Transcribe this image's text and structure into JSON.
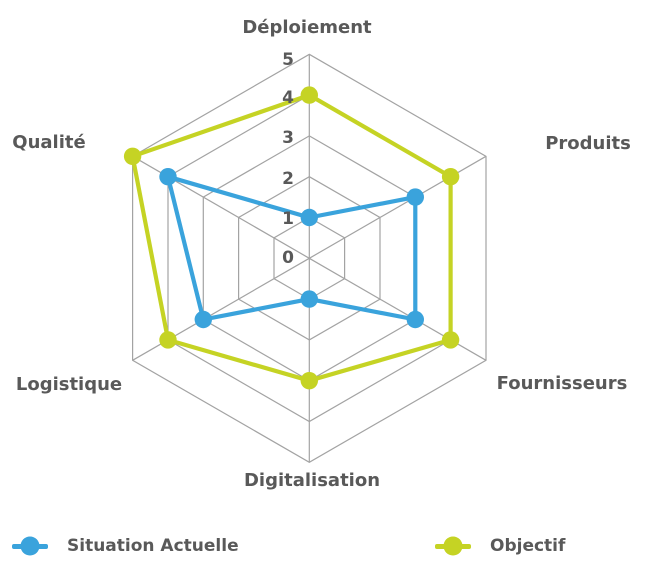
{
  "chart_data": {
    "type": "radar",
    "title": "",
    "categories": [
      "Déploiement",
      "Produits",
      "Fournisseurs",
      "Digitalisation",
      "Logistique",
      "Qualité"
    ],
    "series": [
      {
        "name": "Situation Actuelle",
        "color": "#3AA3DC",
        "values": [
          1,
          3,
          3,
          1,
          3,
          4
        ]
      },
      {
        "name": "Objectif",
        "color": "#C5D324",
        "values": [
          4,
          4,
          4,
          3,
          4,
          5
        ]
      }
    ],
    "axis_range": [
      0,
      5
    ],
    "ticks": [
      "0",
      "1",
      "2",
      "3",
      "4",
      "5"
    ],
    "grid": "on",
    "grid_color": "#A3A3A3",
    "label_color": "#595959",
    "legend_position": "bottom"
  }
}
